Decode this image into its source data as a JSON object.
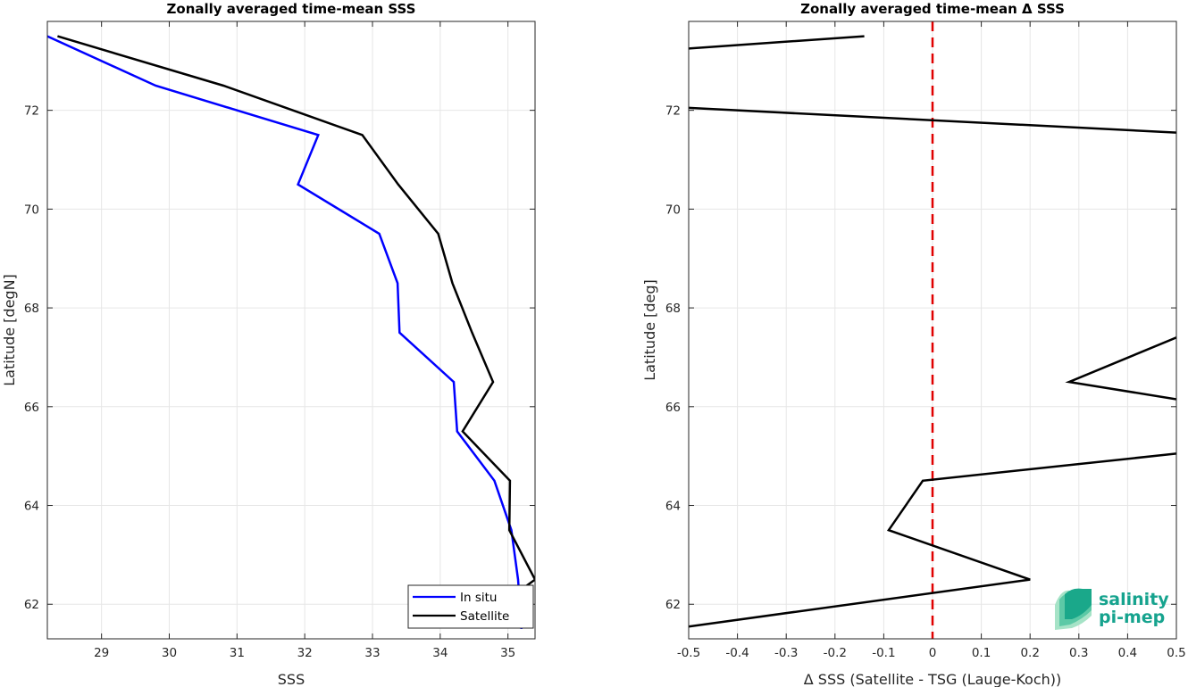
{
  "chart_data": [
    {
      "type": "line",
      "title": "Zonally averaged time-mean SSS",
      "xlabel": "SSS",
      "ylabel": "Latitude [degN]",
      "xlim": [
        28.2,
        35.4
      ],
      "ylim": [
        61.3,
        73.8
      ],
      "xticks": [
        29,
        30,
        31,
        32,
        33,
        34,
        35
      ],
      "yticks": [
        62,
        64,
        66,
        68,
        70,
        72
      ],
      "grid": true,
      "legend_position": "bottom-right",
      "series": [
        {
          "name": "In situ",
          "color": "#0000ff",
          "points": [
            [
              28.2,
              73.5
            ],
            [
              29.8,
              72.5
            ],
            [
              32.2,
              71.5
            ],
            [
              31.9,
              70.5
            ],
            [
              33.1,
              69.5
            ],
            [
              33.37,
              68.5
            ],
            [
              33.4,
              67.5
            ],
            [
              34.2,
              66.5
            ],
            [
              34.25,
              65.5
            ],
            [
              34.8,
              64.5
            ],
            [
              35.05,
              63.5
            ],
            [
              35.15,
              62.5
            ],
            [
              35.2,
              61.5
            ]
          ]
        },
        {
          "name": "Satellite",
          "color": "#000000",
          "points": [
            [
              28.35,
              73.5
            ],
            [
              30.8,
              72.5
            ],
            [
              32.85,
              71.5
            ],
            [
              33.38,
              70.5
            ],
            [
              33.97,
              69.5
            ],
            [
              34.18,
              68.5
            ],
            [
              34.47,
              67.5
            ],
            [
              34.78,
              66.5
            ],
            [
              34.33,
              65.5
            ],
            [
              35.03,
              64.5
            ],
            [
              35.02,
              63.5
            ],
            [
              35.4,
              62.5
            ],
            [
              35.2,
              62.3
            ]
          ]
        }
      ]
    },
    {
      "type": "line",
      "title": "Zonally averaged time-mean Δ SSS",
      "xlabel": "Δ SSS (Satellite - TSG (Lauge-Koch))",
      "ylabel": "Latitude [deg]",
      "xlim": [
        -0.5,
        0.5
      ],
      "ylim": [
        61.3,
        73.8
      ],
      "xticks": [
        -0.5,
        -0.4,
        -0.3,
        -0.2,
        -0.1,
        0,
        0.1,
        0.2,
        0.3,
        0.4,
        0.5
      ],
      "yticks": [
        62,
        64,
        66,
        68,
        70,
        72
      ],
      "grid": true,
      "reference_line": {
        "x": 0,
        "color": "#e00000",
        "style": "dashed"
      },
      "series": [
        {
          "name": "",
          "color": "#000000",
          "points": [
            [
              -0.5,
              61.55
            ],
            [
              0.2,
              62.5
            ],
            [
              -0.09,
              63.5
            ],
            [
              -0.02,
              64.5
            ],
            [
              0.5,
              65.05
            ],
            [
              null,
              null
            ],
            [
              0.5,
              66.15
            ],
            [
              0.28,
              66.5
            ],
            [
              0.5,
              67.4
            ],
            [
              null,
              null
            ],
            [
              -0.5,
              72.05
            ],
            [
              0.5,
              71.55
            ],
            [
              null,
              null
            ],
            [
              -0.5,
              73.25
            ],
            [
              -0.14,
              73.5
            ]
          ]
        }
      ]
    }
  ],
  "logo": {
    "line1": "salinity",
    "line2": "pi-mep",
    "color": "#16a38e"
  }
}
